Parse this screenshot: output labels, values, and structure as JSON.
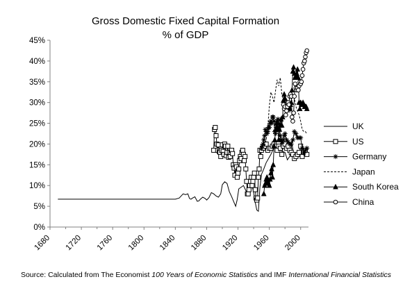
{
  "chart_data": {
    "type": "line",
    "title": "Gross Domestic Fixed Capital Formation",
    "subtitle": "% of GDP",
    "xlim": [
      1680,
      2010
    ],
    "ylim": [
      0,
      45
    ],
    "x_ticks": [
      1680,
      1720,
      1760,
      1800,
      1840,
      1880,
      1920,
      1960,
      2000
    ],
    "y_ticks": [
      "0%",
      "5%",
      "10%",
      "15%",
      "20%",
      "25%",
      "30%",
      "35%",
      "40%",
      "45%"
    ],
    "legend_position": "right",
    "series": [
      {
        "name": "UK",
        "marker": "none",
        "dash": "solid",
        "x": [
          1690,
          1700,
          1720,
          1740,
          1760,
          1780,
          1800,
          1820,
          1840,
          1845,
          1850,
          1853,
          1856,
          1858,
          1860,
          1862,
          1865,
          1868,
          1870,
          1872,
          1875,
          1878,
          1880,
          1883,
          1886,
          1889,
          1892,
          1895,
          1898,
          1900,
          1903,
          1906,
          1909,
          1912,
          1915,
          1917,
          1919,
          1921,
          1924,
          1927,
          1930,
          1933,
          1936,
          1938,
          1940,
          1942,
          1944,
          1946,
          1948,
          1950,
          1953,
          1956,
          1959,
          1962,
          1965,
          1968,
          1971,
          1974,
          1977,
          1980,
          1983,
          1986,
          1989,
          1992,
          1995,
          1998,
          2001,
          2004,
          2007
        ],
        "values": [
          6.7,
          6.7,
          6.7,
          6.7,
          6.7,
          6.7,
          6.7,
          6.7,
          6.7,
          7.0,
          8.0,
          7.8,
          8.0,
          6.9,
          6.7,
          7.0,
          7.3,
          6.2,
          6.3,
          6.7,
          7.2,
          6.9,
          6.5,
          7.1,
          8.3,
          8.0,
          7.5,
          7.2,
          8.0,
          10.2,
          10.9,
          10.5,
          8.5,
          7.3,
          5.9,
          5.0,
          6.6,
          9.2,
          9.6,
          10.0,
          8.8,
          8.3,
          9.1,
          9.9,
          8.3,
          6.0,
          4.1,
          3.8,
          9.6,
          12.7,
          14.0,
          15.5,
          16.5,
          17.5,
          18.8,
          19.5,
          20.0,
          19.8,
          18.2,
          18.0,
          16.2,
          17.0,
          20.0,
          16.5,
          16.8,
          17.0,
          17.0,
          16.8,
          18.0
        ]
      },
      {
        "name": "US",
        "marker": "square",
        "dash": "solid",
        "x": [
          1889,
          1890,
          1891,
          1892,
          1893,
          1894,
          1895,
          1896,
          1897,
          1898,
          1899,
          1900,
          1901,
          1902,
          1903,
          1904,
          1905,
          1906,
          1907,
          1908,
          1909,
          1910,
          1911,
          1912,
          1913,
          1914,
          1915,
          1916,
          1917,
          1918,
          1919,
          1920,
          1921,
          1922,
          1923,
          1924,
          1925,
          1926,
          1927,
          1928,
          1929,
          1930,
          1931,
          1932,
          1933,
          1934,
          1935,
          1936,
          1937,
          1938,
          1939,
          1940,
          1941,
          1942,
          1943,
          1944,
          1945,
          1946,
          1947,
          1948,
          1949,
          1950,
          1952,
          1954,
          1956,
          1958,
          1960,
          1962,
          1964,
          1966,
          1968,
          1970,
          1972,
          1974,
          1976,
          1978,
          1980,
          1982,
          1984,
          1986,
          1988,
          1990,
          1992,
          1994,
          1996,
          1998,
          2000,
          2002,
          2004,
          2006,
          2008
        ],
        "values": [
          18.5,
          23.5,
          24.0,
          22.0,
          20.0,
          18.5,
          19.8,
          18.2,
          18.0,
          17.0,
          18.5,
          19.8,
          18.2,
          17.5,
          20.0,
          19.5,
          17.2,
          18.0,
          19.5,
          16.8,
          18.0,
          17.0,
          18.0,
          18.5,
          17.7,
          15.0,
          14.2,
          12.5,
          15.0,
          14.5,
          12.0,
          13.0,
          14.0,
          16.0,
          17.0,
          16.5,
          18.0,
          18.5,
          17.5,
          16.0,
          17.0,
          14.0,
          11.0,
          8.0,
          8.0,
          9.0,
          10.0,
          11.0,
          12.0,
          10.0,
          11.0,
          12.0,
          13.0,
          9.0,
          7.0,
          6.5,
          7.0,
          12.0,
          14.0,
          18.5,
          17.0,
          18.5,
          19.0,
          19.5,
          20.0,
          18.5,
          19.0,
          19.0,
          19.5,
          20.0,
          19.5,
          18.5,
          19.5,
          19.0,
          17.5,
          19.5,
          20.0,
          19.0,
          19.5,
          18.5,
          18.0,
          17.5,
          16.5,
          17.0,
          17.5,
          18.0,
          19.5,
          17.0,
          18.0,
          18.5,
          17.5
        ]
      },
      {
        "name": "Germany",
        "marker": "asterisk",
        "dash": "solid",
        "x": [
          1950,
          1951,
          1952,
          1953,
          1954,
          1955,
          1956,
          1957,
          1958,
          1959,
          1960,
          1961,
          1962,
          1963,
          1964,
          1965,
          1966,
          1967,
          1968,
          1969,
          1970,
          1971,
          1972,
          1973,
          1974,
          1975,
          1976,
          1977,
          1978,
          1979,
          1980,
          1982,
          1984,
          1986,
          1988,
          1990,
          1992,
          1994,
          1996,
          1998,
          2000,
          2002,
          2004,
          2006,
          2008
        ],
        "values": [
          19.0,
          19.5,
          20.0,
          21.0,
          22.0,
          23.5,
          23.0,
          22.5,
          23.0,
          24.0,
          24.0,
          25.0,
          25.5,
          25.0,
          26.5,
          26.5,
          25.5,
          23.0,
          22.5,
          24.0,
          25.5,
          26.0,
          25.0,
          24.0,
          22.0,
          21.0,
          20.5,
          20.5,
          21.0,
          22.0,
          22.5,
          21.0,
          20.5,
          20.0,
          20.0,
          21.0,
          23.0,
          22.5,
          21.5,
          21.5,
          21.5,
          19.0,
          17.8,
          18.5,
          19.0
        ]
      },
      {
        "name": "Japan",
        "marker": "none",
        "dash": "dashed",
        "x": [
          1954,
          1956,
          1958,
          1960,
          1962,
          1964,
          1966,
          1968,
          1970,
          1972,
          1974,
          1976,
          1978,
          1980,
          1982,
          1984,
          1986,
          1988,
          1990,
          1992,
          1994,
          1996,
          1998,
          2000,
          2002,
          2004,
          2006,
          2008
        ],
        "values": [
          19.5,
          21.0,
          24.0,
          29.0,
          32.5,
          31.5,
          30.0,
          33.0,
          35.5,
          34.0,
          36.0,
          32.0,
          30.5,
          32.0,
          30.0,
          28.0,
          27.5,
          29.5,
          32.0,
          31.0,
          29.0,
          28.0,
          27.0,
          25.5,
          23.5,
          23.0,
          23.0,
          22.5
        ]
      },
      {
        "name": "South Korea",
        "marker": "triangle",
        "dash": "solid",
        "x": [
          1953,
          1954,
          1955,
          1956,
          1957,
          1958,
          1959,
          1960,
          1961,
          1962,
          1963,
          1964,
          1965,
          1966,
          1967,
          1968,
          1969,
          1970,
          1971,
          1972,
          1973,
          1974,
          1975,
          1976,
          1977,
          1978,
          1979,
          1980,
          1981,
          1982,
          1983,
          1984,
          1985,
          1986,
          1987,
          1988,
          1989,
          1990,
          1991,
          1992,
          1993,
          1994,
          1995,
          1996,
          1997,
          1998,
          1999,
          2000,
          2001,
          2002,
          2003,
          2004,
          2005,
          2006,
          2007,
          2008
        ],
        "values": [
          8.0,
          10.0,
          10.5,
          11.5,
          12.0,
          11.0,
          10.5,
          10.0,
          11.5,
          13.0,
          14.0,
          12.0,
          15.0,
          19.5,
          21.0,
          23.5,
          25.0,
          24.0,
          23.5,
          21.0,
          23.5,
          24.5,
          26.0,
          24.5,
          26.5,
          30.5,
          32.0,
          31.0,
          29.0,
          28.5,
          28.5,
          29.0,
          29.0,
          28.5,
          29.5,
          30.0,
          33.0,
          37.5,
          38.5,
          37.0,
          36.0,
          36.5,
          37.0,
          38.0,
          36.0,
          30.0,
          28.5,
          30.0,
          29.5,
          29.5,
          30.0,
          29.5,
          29.0,
          29.0,
          29.0,
          28.5
        ]
      },
      {
        "name": "China",
        "marker": "circle",
        "dash": "solid",
        "x": [
          1978,
          1979,
          1980,
          1981,
          1982,
          1983,
          1984,
          1985,
          1986,
          1987,
          1988,
          1989,
          1990,
          1991,
          1992,
          1993,
          1994,
          1995,
          1996,
          1997,
          1998,
          1999,
          2000,
          2001,
          2002,
          2003,
          2004,
          2005,
          2006,
          2007,
          2008
        ],
        "values": [
          29.5,
          28.5,
          29.0,
          27.0,
          28.0,
          29.0,
          30.0,
          29.5,
          31.5,
          32.0,
          31.5,
          26.5,
          25.5,
          27.5,
          31.5,
          34.5,
          33.5,
          33.0,
          33.5,
          33.0,
          34.0,
          35.0,
          34.5,
          35.0,
          36.5,
          38.0,
          39.5,
          40.0,
          41.0,
          42.0,
          42.5
        ]
      }
    ]
  },
  "source": {
    "prefix": "Source: Calculated from The Economist ",
    "italic1": "100 Years of Economic Statistics",
    "middle": " and IMF ",
    "italic2": "International Financial Statistics"
  }
}
